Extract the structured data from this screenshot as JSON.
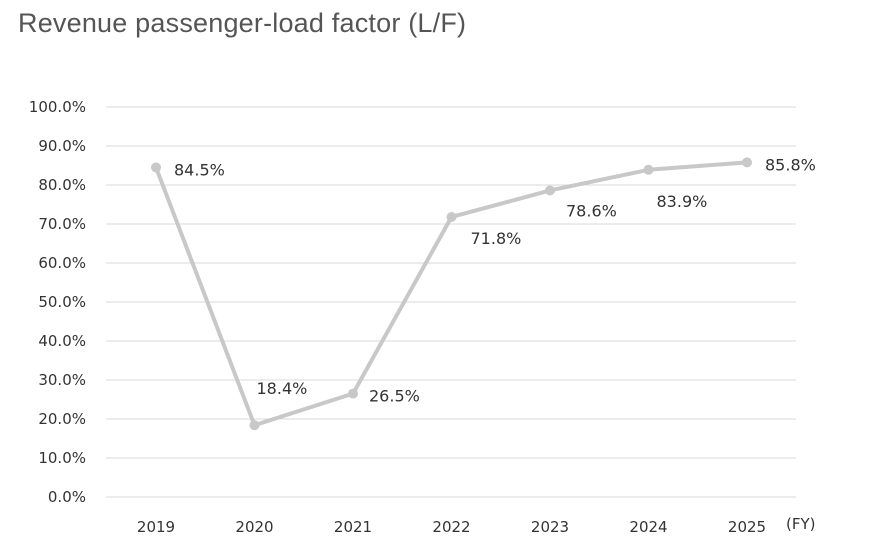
{
  "chart_data": {
    "type": "line",
    "title": "Revenue passenger-load factor (L/F)",
    "x": [
      "2019",
      "2020",
      "2021",
      "2022",
      "2023",
      "2024",
      "2025"
    ],
    "series": [
      {
        "values": [
          84.5,
          18.4,
          26.5,
          71.8,
          78.6,
          83.9,
          85.8
        ],
        "labels": [
          "84.5%",
          "18.4%",
          "26.5%",
          "71.8%",
          "78.6%",
          "83.9%",
          "85.8%"
        ]
      }
    ],
    "ylim": [
      0,
      100
    ],
    "yticks": [
      "0.0%",
      "10.0%",
      "20.0%",
      "30.0%",
      "40.0%",
      "50.0%",
      "60.0%",
      "70.0%",
      "80.0%",
      "90.0%",
      "100.0%"
    ],
    "xunit": "(FY)",
    "grid": true,
    "line_color": "#c8c8c8",
    "grid_color": "#d9d9d9"
  }
}
